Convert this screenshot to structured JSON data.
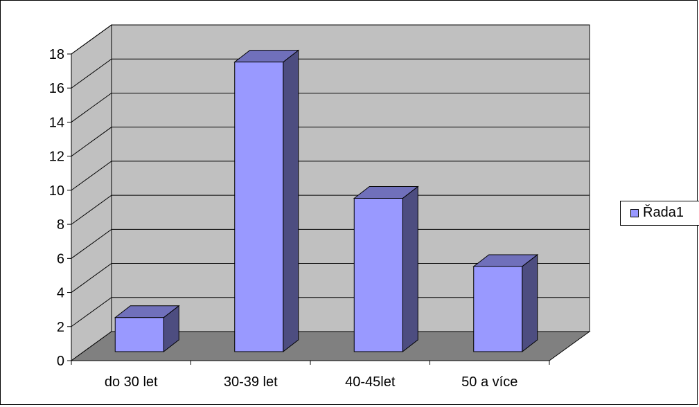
{
  "chart_data": {
    "type": "bar",
    "style": "3d-column",
    "categories": [
      "do 30 let",
      "30-39 let",
      "40-45let",
      "50 a více"
    ],
    "series": [
      {
        "name": "Řada1",
        "values": [
          2,
          17,
          9,
          5
        ],
        "color": "#9999ff",
        "side_color": "#4d4d80",
        "top_color": "#7070bb"
      }
    ],
    "ylim": [
      0,
      18
    ],
    "yticks": [
      0,
      2,
      4,
      6,
      8,
      10,
      12,
      14,
      16,
      18
    ],
    "grid": true,
    "wall_color": "#c0c0c0",
    "floor_color": "#808080",
    "legend_position": "right"
  }
}
